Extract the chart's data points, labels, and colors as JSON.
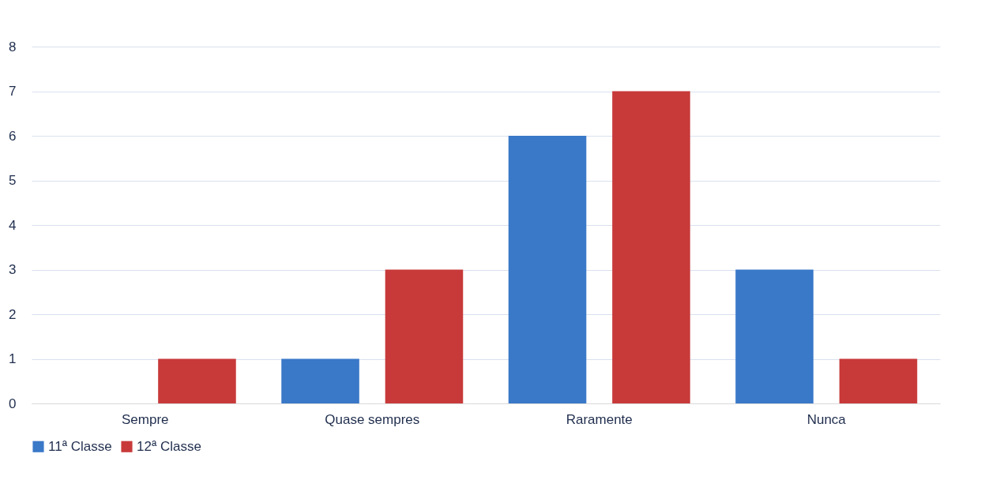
{
  "chart_data": {
    "type": "bar",
    "categories": [
      "Sempre",
      "Quase sempres",
      "Raramente",
      "Nunca"
    ],
    "series": [
      {
        "name": "11ª Classe",
        "color": "#3a78c8",
        "values": [
          0,
          1,
          6,
          3
        ]
      },
      {
        "name": "12ª Classe",
        "color": "#c83a3a",
        "values": [
          1,
          3,
          7,
          1
        ]
      }
    ],
    "ylim": [
      0,
      8
    ],
    "yticks": [
      0,
      1,
      2,
      3,
      4,
      5,
      6,
      7,
      8
    ],
    "grid": "y",
    "legend": "bottom"
  }
}
